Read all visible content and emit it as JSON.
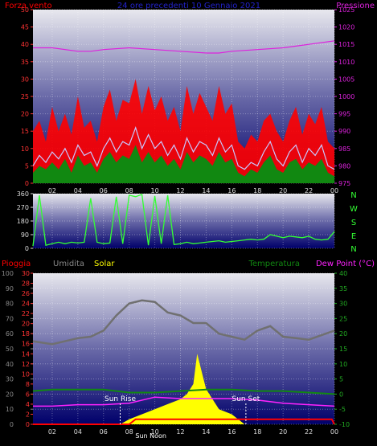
{
  "header": {
    "wind_label": "Forza vento",
    "period_label": "24 ore precedenti 10 Gennaio 2021",
    "pressure_label": "Pressione"
  },
  "lower_header": {
    "rain_label": "Pioggia",
    "humidity_label": "Umidita",
    "solar_label": "Solar",
    "temperature_label": "Temperatura",
    "dewpoint_label": "Dew Point (°C)"
  },
  "annotations": {
    "sunrise": "Sun Rise",
    "sunset": "Sun Set",
    "noon": "Sun Noon"
  },
  "compass": [
    "N",
    "W",
    "S",
    "E",
    "N"
  ],
  "colors": {
    "wind": "#ff0000",
    "gust": "#ff0000",
    "wind_avg": "#c8c8ff",
    "pressure": "#dd22dd",
    "direction": "#33ff33",
    "humidity": "#707070",
    "temperature": "#118811",
    "dewpoint": "#ff22ff",
    "rain": "#ff0000",
    "solar": "#ffff00",
    "compass": "#33ff33"
  },
  "chart_data": [
    {
      "type": "line",
      "name": "wind_pressure",
      "x_ticks": [
        "02",
        "04",
        "06",
        "08",
        "10",
        "12",
        "14",
        "16",
        "18",
        "20",
        "22",
        "00"
      ],
      "x_hours": [
        2,
        4,
        6,
        8,
        10,
        12,
        14,
        16,
        18,
        20,
        22,
        24
      ],
      "x_range": [
        0.5,
        24
      ],
      "y_left_ticks": [
        "0",
        "5",
        "10",
        "15",
        "20",
        "25",
        "30",
        "35",
        "40",
        "45",
        "50"
      ],
      "y_left_range": [
        0,
        50
      ],
      "y_right_ticks": [
        "975",
        "980",
        "985",
        "990",
        "995",
        "1000",
        "1005",
        "1010",
        "1015",
        "1020",
        "1025"
      ],
      "y_right_range": [
        975,
        1025
      ],
      "grid": true,
      "series": {
        "gust_hours": [
          0.5,
          1,
          1.5,
          2,
          2.5,
          3,
          3.5,
          4,
          4.5,
          5,
          5.5,
          6,
          6.5,
          7,
          7.5,
          8,
          8.5,
          9,
          9.5,
          10,
          10.5,
          11,
          11.5,
          12,
          12.5,
          13,
          13.5,
          14,
          14.5,
          15,
          15.5,
          16,
          16.5,
          17,
          17.5,
          18,
          18.5,
          19,
          19.5,
          20,
          20.5,
          21,
          21.5,
          22,
          22.5,
          23,
          23.5,
          24
        ],
        "gust_values": [
          15,
          18,
          12,
          22,
          15,
          20,
          14,
          25,
          16,
          18,
          12,
          22,
          27,
          18,
          24,
          23,
          30,
          20,
          28,
          21,
          25,
          18,
          22,
          15,
          28,
          20,
          26,
          22,
          18,
          28,
          20,
          23,
          12,
          10,
          14,
          12,
          18,
          20,
          15,
          12,
          18,
          22,
          14,
          20,
          17,
          22,
          12,
          10
        ],
        "avg_hours": [
          0.5,
          1,
          1.5,
          2,
          2.5,
          3,
          3.5,
          4,
          4.5,
          5,
          5.5,
          6,
          6.5,
          7,
          7.5,
          8,
          8.5,
          9,
          9.5,
          10,
          10.5,
          11,
          11.5,
          12,
          12.5,
          13,
          13.5,
          14,
          14.5,
          15,
          15.5,
          16,
          16.5,
          17,
          17.5,
          18,
          18.5,
          19,
          19.5,
          20,
          20.5,
          21,
          21.5,
          22,
          22.5,
          23,
          23.5,
          24
        ],
        "avg_values": [
          5,
          8,
          6,
          9,
          7,
          10,
          6,
          11,
          8,
          9,
          5,
          10,
          13,
          9,
          12,
          11,
          16,
          10,
          14,
          10,
          12,
          8,
          11,
          7,
          13,
          9,
          12,
          11,
          8,
          13,
          9,
          11,
          5,
          4,
          6,
          5,
          9,
          12,
          7,
          5,
          9,
          11,
          6,
          10,
          8,
          11,
          5,
          4
        ],
        "wind_hours": [
          0.5,
          1,
          1.5,
          2,
          2.5,
          3,
          3.5,
          4,
          4.5,
          5,
          5.5,
          6,
          6.5,
          7,
          7.5,
          8,
          8.5,
          9,
          9.5,
          10,
          10.5,
          11,
          11.5,
          12,
          12.5,
          13,
          13.5,
          14,
          14.5,
          15,
          15.5,
          16,
          16.5,
          17,
          17.5,
          18,
          18.5,
          19,
          19.5,
          20,
          20.5,
          21,
          21.5,
          22,
          22.5,
          23,
          23.5,
          24
        ],
        "wind_values": [
          3,
          5,
          4,
          6,
          4,
          7,
          3,
          8,
          5,
          6,
          3,
          7,
          9,
          6,
          8,
          7,
          11,
          6,
          9,
          6,
          8,
          5,
          7,
          4,
          9,
          6,
          8,
          7,
          5,
          9,
          6,
          7,
          3,
          2,
          4,
          3,
          6,
          8,
          4,
          3,
          6,
          7,
          4,
          6,
          5,
          7,
          3,
          2
        ],
        "pressure_hours": [
          0.5,
          2,
          4,
          5,
          6,
          8,
          10,
          12,
          14,
          15,
          16,
          18,
          20,
          22,
          24
        ],
        "pressure_values": [
          1014,
          1014,
          1013,
          1013,
          1013.5,
          1014,
          1013.5,
          1013,
          1012.5,
          1012.5,
          1013,
          1013.5,
          1014,
          1015,
          1016
        ]
      }
    },
    {
      "type": "line",
      "name": "wind_direction",
      "x_range": [
        0.5,
        24
      ],
      "y_left_ticks": [
        "0",
        "90",
        "180",
        "270",
        "360"
      ],
      "y_left_range": [
        0,
        360
      ],
      "grid": true,
      "series": {
        "direction_hours": [
          0.5,
          1,
          1.5,
          2,
          2.5,
          3,
          3.5,
          4,
          4.5,
          5,
          5.5,
          6,
          6.5,
          7,
          7.5,
          8,
          8.5,
          9,
          9.5,
          10,
          10.5,
          11,
          11.5,
          12,
          12.5,
          13,
          13.5,
          14,
          14.5,
          15,
          15.5,
          16,
          16.5,
          17,
          17.5,
          18,
          18.5,
          19,
          19.5,
          20,
          20.5,
          21,
          21.5,
          22,
          22.5,
          23,
          23.5,
          24
        ],
        "direction_values": [
          15,
          350,
          20,
          30,
          40,
          30,
          40,
          35,
          40,
          330,
          40,
          30,
          35,
          340,
          30,
          350,
          340,
          355,
          20,
          345,
          30,
          350,
          25,
          30,
          40,
          30,
          35,
          40,
          45,
          50,
          40,
          45,
          50,
          55,
          60,
          55,
          60,
          90,
          80,
          70,
          80,
          75,
          70,
          80,
          60,
          55,
          60,
          110
        ]
      }
    },
    {
      "type": "line",
      "name": "temperature_humidity_rain_solar",
      "x_ticks": [
        "02",
        "04",
        "06",
        "08",
        "10",
        "12",
        "14",
        "16",
        "18",
        "20",
        "22",
        "00"
      ],
      "x_hours": [
        2,
        4,
        6,
        8,
        10,
        12,
        14,
        16,
        18,
        20,
        22,
        24
      ],
      "x_range": [
        0.5,
        24
      ],
      "y_humidity_ticks": [
        "0",
        "10",
        "20",
        "30",
        "40",
        "50",
        "60",
        "70",
        "80",
        "90",
        "100"
      ],
      "y_humidity_range": [
        0,
        100
      ],
      "y_rain_ticks": [
        "0",
        "2",
        "4",
        "6",
        "8",
        "10",
        "12",
        "14",
        "16",
        "18",
        "20",
        "22",
        "24",
        "26",
        "28",
        "30"
      ],
      "y_rain_range": [
        0,
        30
      ],
      "y_temp_ticks": [
        "-10",
        "-5",
        "0",
        "5",
        "10",
        "15",
        "20",
        "25",
        "30",
        "35",
        "40"
      ],
      "y_temp_range": [
        -10,
        40
      ],
      "grid": true,
      "series": {
        "humidity_hours": [
          0.5,
          2,
          4,
          5,
          6,
          7,
          8,
          9,
          10,
          11,
          12,
          13,
          14,
          15,
          16,
          17,
          18,
          19,
          20,
          21,
          22,
          23,
          24
        ],
        "humidity_values": [
          55,
          53,
          57,
          58,
          62,
          72,
          80,
          82,
          81,
          74,
          72,
          67,
          67,
          60,
          58,
          56,
          62,
          65,
          58,
          57,
          56,
          59,
          62
        ],
        "temperature_hours": [
          0.5,
          2,
          4,
          6,
          8,
          10,
          12,
          14,
          16,
          18,
          20,
          22,
          24
        ],
        "temperature_values": [
          1,
          1.5,
          1.5,
          1.5,
          0.5,
          0.5,
          1,
          1.5,
          1.5,
          1,
          1,
          0.5,
          0
        ],
        "dewpoint_hours": [
          0.5,
          2,
          4,
          6,
          8,
          10,
          12,
          14,
          16,
          18,
          20,
          22,
          24
        ],
        "dewpoint_values": [
          -4,
          -4,
          -3.5,
          -3.5,
          -3,
          -1,
          -1.5,
          -1.5,
          -1.5,
          -2,
          -3,
          -3.5,
          -4
        ],
        "rain_hours": [
          0.5,
          8,
          8.5,
          17,
          23.8,
          24
        ],
        "rain_values": [
          0,
          0,
          1,
          1,
          1,
          0
        ],
        "solar_hours": [
          7.3,
          8,
          9,
          10,
          11,
          12,
          12.5,
          13,
          13.3,
          13.7,
          14,
          14.5,
          15,
          16,
          17
        ],
        "solar_values": [
          0,
          1,
          2,
          3,
          4,
          5,
          6,
          8,
          14,
          10,
          7,
          5,
          3,
          2,
          0
        ]
      },
      "sunrise_hour": 7.3,
      "noon_hour": 12.2,
      "sunset_hour": 17.1
    }
  ]
}
